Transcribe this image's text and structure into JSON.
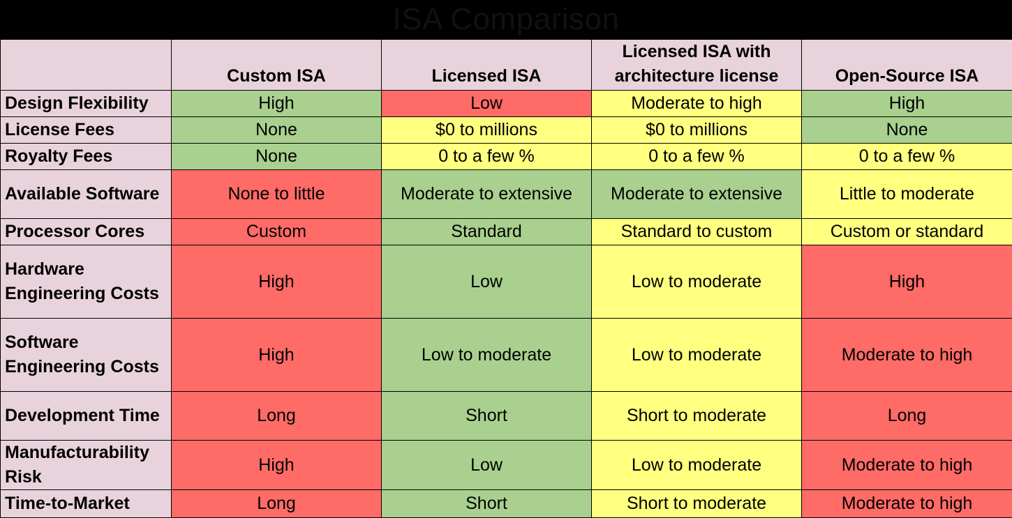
{
  "title": "ISA Comparison",
  "colors": {
    "green": "#a9d08e",
    "red": "#ff6b67",
    "yellow": "#ffff80",
    "label": "#e8d3dc"
  },
  "chart_data": {
    "type": "table",
    "title": "ISA Comparison",
    "columns": [
      "Custom ISA",
      "Licensed ISA",
      "Licensed ISA with architecture license",
      "Open-Source ISA"
    ],
    "rows": [
      {
        "label": "Design Flexibility",
        "cells": [
          {
            "text": "High",
            "color": "green"
          },
          {
            "text": "Low",
            "color": "red"
          },
          {
            "text": "Moderate to high",
            "color": "yellow"
          },
          {
            "text": "High",
            "color": "green"
          }
        ]
      },
      {
        "label": "License Fees",
        "cells": [
          {
            "text": "None",
            "color": "green"
          },
          {
            "text": "$0 to millions",
            "color": "yellow"
          },
          {
            "text": "$0 to millions",
            "color": "yellow"
          },
          {
            "text": "None",
            "color": "green"
          }
        ]
      },
      {
        "label": "Royalty Fees",
        "cells": [
          {
            "text": "None",
            "color": "green"
          },
          {
            "text": "0 to a few %",
            "color": "yellow"
          },
          {
            "text": "0 to a few %",
            "color": "yellow"
          },
          {
            "text": "0 to a few %",
            "color": "yellow"
          }
        ]
      },
      {
        "label": "Available Software",
        "cells": [
          {
            "text": "None to little",
            "color": "red"
          },
          {
            "text": "Moderate to extensive",
            "color": "green"
          },
          {
            "text": "Moderate to extensive",
            "color": "green"
          },
          {
            "text": "Little to moderate",
            "color": "yellow"
          }
        ]
      },
      {
        "label": "Processor Cores",
        "cells": [
          {
            "text": "Custom",
            "color": "red"
          },
          {
            "text": "Standard",
            "color": "green"
          },
          {
            "text": "Standard to custom",
            "color": "yellow"
          },
          {
            "text": "Custom or standard",
            "color": "yellow"
          }
        ]
      },
      {
        "label": "Hardware Engineering Costs",
        "cells": [
          {
            "text": "High",
            "color": "red"
          },
          {
            "text": "Low",
            "color": "green"
          },
          {
            "text": "Low to moderate",
            "color": "yellow"
          },
          {
            "text": "High",
            "color": "red"
          }
        ]
      },
      {
        "label": "Software Engineering Costs",
        "cells": [
          {
            "text": "High",
            "color": "red"
          },
          {
            "text": "Low to moderate",
            "color": "green"
          },
          {
            "text": "Low to moderate",
            "color": "yellow"
          },
          {
            "text": "Moderate to high",
            "color": "red"
          }
        ]
      },
      {
        "label": "Development Time",
        "cells": [
          {
            "text": "Long",
            "color": "red"
          },
          {
            "text": "Short",
            "color": "green"
          },
          {
            "text": "Short to moderate",
            "color": "yellow"
          },
          {
            "text": "Long",
            "color": "red"
          }
        ]
      },
      {
        "label": "Manufacturability Risk",
        "cells": [
          {
            "text": "High",
            "color": "red"
          },
          {
            "text": "Low",
            "color": "green"
          },
          {
            "text": "Low to moderate",
            "color": "yellow"
          },
          {
            "text": "Moderate to high",
            "color": "red"
          }
        ]
      },
      {
        "label": "Time-to-Market",
        "cells": [
          {
            "text": "Long",
            "color": "red"
          },
          {
            "text": "Short",
            "color": "green"
          },
          {
            "text": "Short to moderate",
            "color": "yellow"
          },
          {
            "text": "Moderate to high",
            "color": "red"
          }
        ]
      }
    ]
  }
}
